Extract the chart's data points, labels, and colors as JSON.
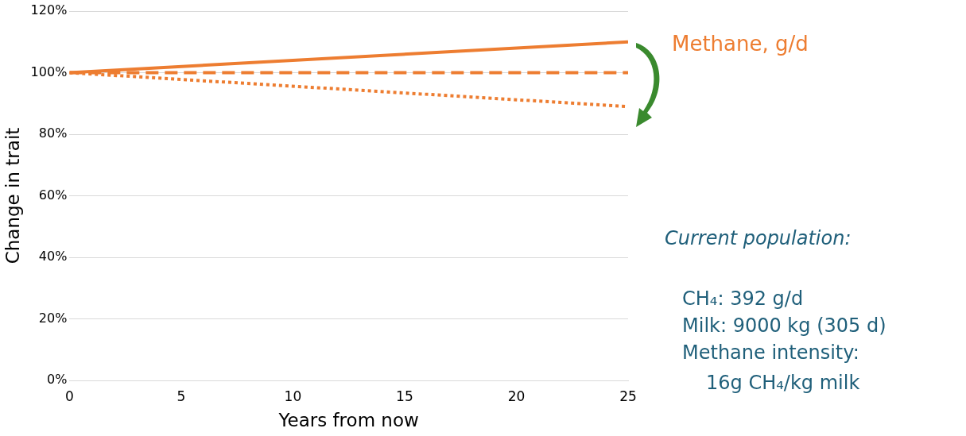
{
  "chart_data": {
    "type": "line",
    "xlabel": "Years from now",
    "ylabel": "Change in trait",
    "x": [
      0,
      25
    ],
    "series": [
      {
        "name": "Methane, g/d",
        "color": "#ed7d31",
        "values": [
          100,
          110
        ],
        "line_style": "solid"
      },
      {
        "color": "#ed7d31",
        "values": [
          100,
          100
        ],
        "line_style": "dashed"
      },
      {
        "color": "#ed7d31",
        "values": [
          100,
          89
        ],
        "line_style": "dotted"
      }
    ],
    "xlim": [
      0,
      25
    ],
    "xticks": [
      0,
      5,
      10,
      15,
      20,
      25
    ],
    "ylim": [
      0,
      120
    ],
    "yticks": [
      {
        "value": 0,
        "label": "0%"
      },
      {
        "value": 20,
        "label": "20%"
      },
      {
        "value": 40,
        "label": "40%"
      },
      {
        "value": 60,
        "label": "60%"
      },
      {
        "value": 80,
        "label": "80%"
      },
      {
        "value": 100,
        "label": "100%"
      },
      {
        "value": 120,
        "label": "120%"
      }
    ],
    "grid": "y",
    "legend": false,
    "marker": "none",
    "annotations": [
      "Current population:",
      "CH₄: 392 g/d",
      "Milk: 9000 kg (305 d)",
      "Methane intensity:",
      "16g CH₄/kg milk"
    ]
  }
}
